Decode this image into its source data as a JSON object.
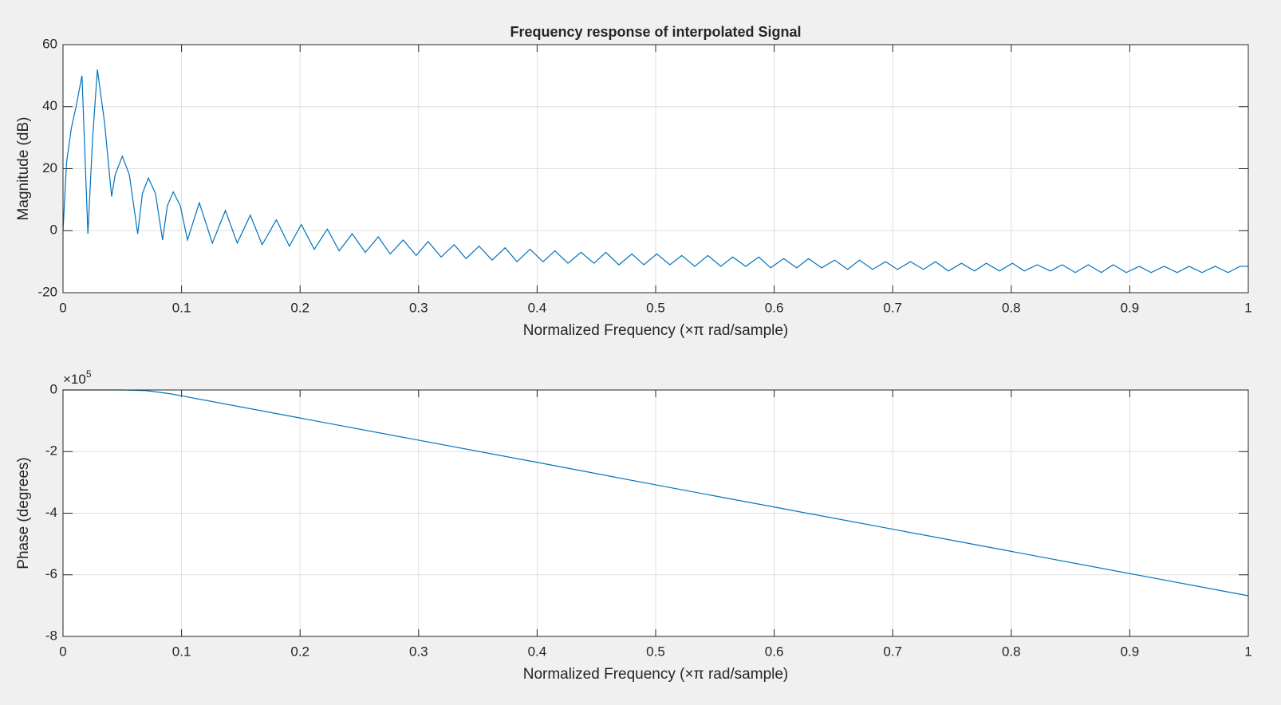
{
  "chart_data": [
    {
      "type": "line",
      "title": "Frequency response of interpolated Signal",
      "x_label": "Normalized Frequency  (×π rad/sample)",
      "y_label": "Magnitude (dB)",
      "xlim": [
        0,
        1
      ],
      "ylim": [
        -20,
        60
      ],
      "xticks": [
        0,
        0.1,
        0.2,
        0.3,
        0.4,
        0.5,
        0.6,
        0.7,
        0.8,
        0.9,
        1
      ],
      "yticks": [
        -20,
        0,
        20,
        40,
        60
      ],
      "grid": true,
      "color": "#0072bd",
      "x": [
        0,
        0.003,
        0.007,
        0.011,
        0.016,
        0.021,
        0.025,
        0.029,
        0.035,
        0.041,
        0.044,
        0.05,
        0.056,
        0.063,
        0.067,
        0.072,
        0.078,
        0.084,
        0.088,
        0.093,
        0.099,
        0.105,
        0.115,
        0.126,
        0.137,
        0.147,
        0.158,
        0.168,
        0.18,
        0.191,
        0.201,
        0.212,
        0.223,
        0.233,
        0.244,
        0.255,
        0.266,
        0.276,
        0.287,
        0.298,
        0.308,
        0.319,
        0.33,
        0.34,
        0.351,
        0.362,
        0.373,
        0.383,
        0.394,
        0.405,
        0.415,
        0.426,
        0.437,
        0.448,
        0.458,
        0.469,
        0.48,
        0.49,
        0.501,
        0.512,
        0.522,
        0.533,
        0.544,
        0.555,
        0.565,
        0.576,
        0.587,
        0.597,
        0.608,
        0.619,
        0.629,
        0.64,
        0.651,
        0.662,
        0.672,
        0.683,
        0.694,
        0.704,
        0.715,
        0.726,
        0.736,
        0.747,
        0.758,
        0.769,
        0.779,
        0.79,
        0.801,
        0.811,
        0.822,
        0.833,
        0.843,
        0.854,
        0.865,
        0.876,
        0.886,
        0.897,
        0.908,
        0.918,
        0.929,
        0.94,
        0.95,
        0.961,
        0.972,
        0.983,
        0.993,
        1
      ],
      "values": [
        0,
        22,
        33,
        40,
        50,
        -1,
        30,
        52,
        35,
        11,
        18,
        24,
        18,
        -1,
        12,
        17,
        12,
        -3,
        8,
        12.5,
        8,
        -3,
        9,
        -4,
        6.5,
        -4,
        5,
        -4.5,
        3.5,
        -5,
        2,
        -6,
        0.5,
        -6.5,
        -1,
        -7,
        -2,
        -7.5,
        -3,
        -8,
        -3.5,
        -8.5,
        -4.5,
        -9,
        -5,
        -9.5,
        -5.5,
        -10,
        -6,
        -10,
        -6.5,
        -10.5,
        -7,
        -10.5,
        -7,
        -11,
        -7.5,
        -11,
        -7.5,
        -11,
        -8,
        -11.5,
        -8,
        -11.5,
        -8.5,
        -11.5,
        -8.5,
        -12,
        -9,
        -12,
        -9,
        -12,
        -9.5,
        -12.5,
        -9.5,
        -12.5,
        -10,
        -12.5,
        -10,
        -12.5,
        -10,
        -13,
        -10.5,
        -13,
        -10.5,
        -13,
        -10.5,
        -13,
        -11,
        -13,
        -11,
        -13.5,
        -11,
        -13.5,
        -11,
        -13.5,
        -11.5,
        -13.5,
        -11.5,
        -13.5,
        -11.5,
        -13.5,
        -11.5,
        -13.5,
        -11.5,
        -11.5
      ]
    },
    {
      "type": "line",
      "x_label": "Normalized Frequency  (×π rad/sample)",
      "y_label": "Phase (degrees)",
      "y_scale_label": "×10",
      "y_scale_exponent": "5",
      "xlim": [
        0,
        1
      ],
      "ylim": [
        -800000,
        0
      ],
      "xticks": [
        0,
        0.1,
        0.2,
        0.3,
        0.4,
        0.5,
        0.6,
        0.7,
        0.8,
        0.9,
        1
      ],
      "yticks": [
        {
          "value": -800000,
          "label": "-8"
        },
        {
          "value": -600000,
          "label": "-6"
        },
        {
          "value": -400000,
          "label": "-4"
        },
        {
          "value": -200000,
          "label": "-2"
        },
        {
          "value": 0,
          "label": "0"
        }
      ],
      "grid": true,
      "color": "#0072bd",
      "x": [
        0,
        0.05,
        0.07,
        0.09,
        0.1,
        0.2,
        0.3,
        0.4,
        0.5,
        0.6,
        0.7,
        0.8,
        0.9,
        1
      ],
      "values": [
        0,
        0,
        -2000,
        -12000,
        -19000,
        -91000,
        -163000,
        -235000,
        -308000,
        -380000,
        -452000,
        -524000,
        -596000,
        -668000
      ]
    }
  ]
}
